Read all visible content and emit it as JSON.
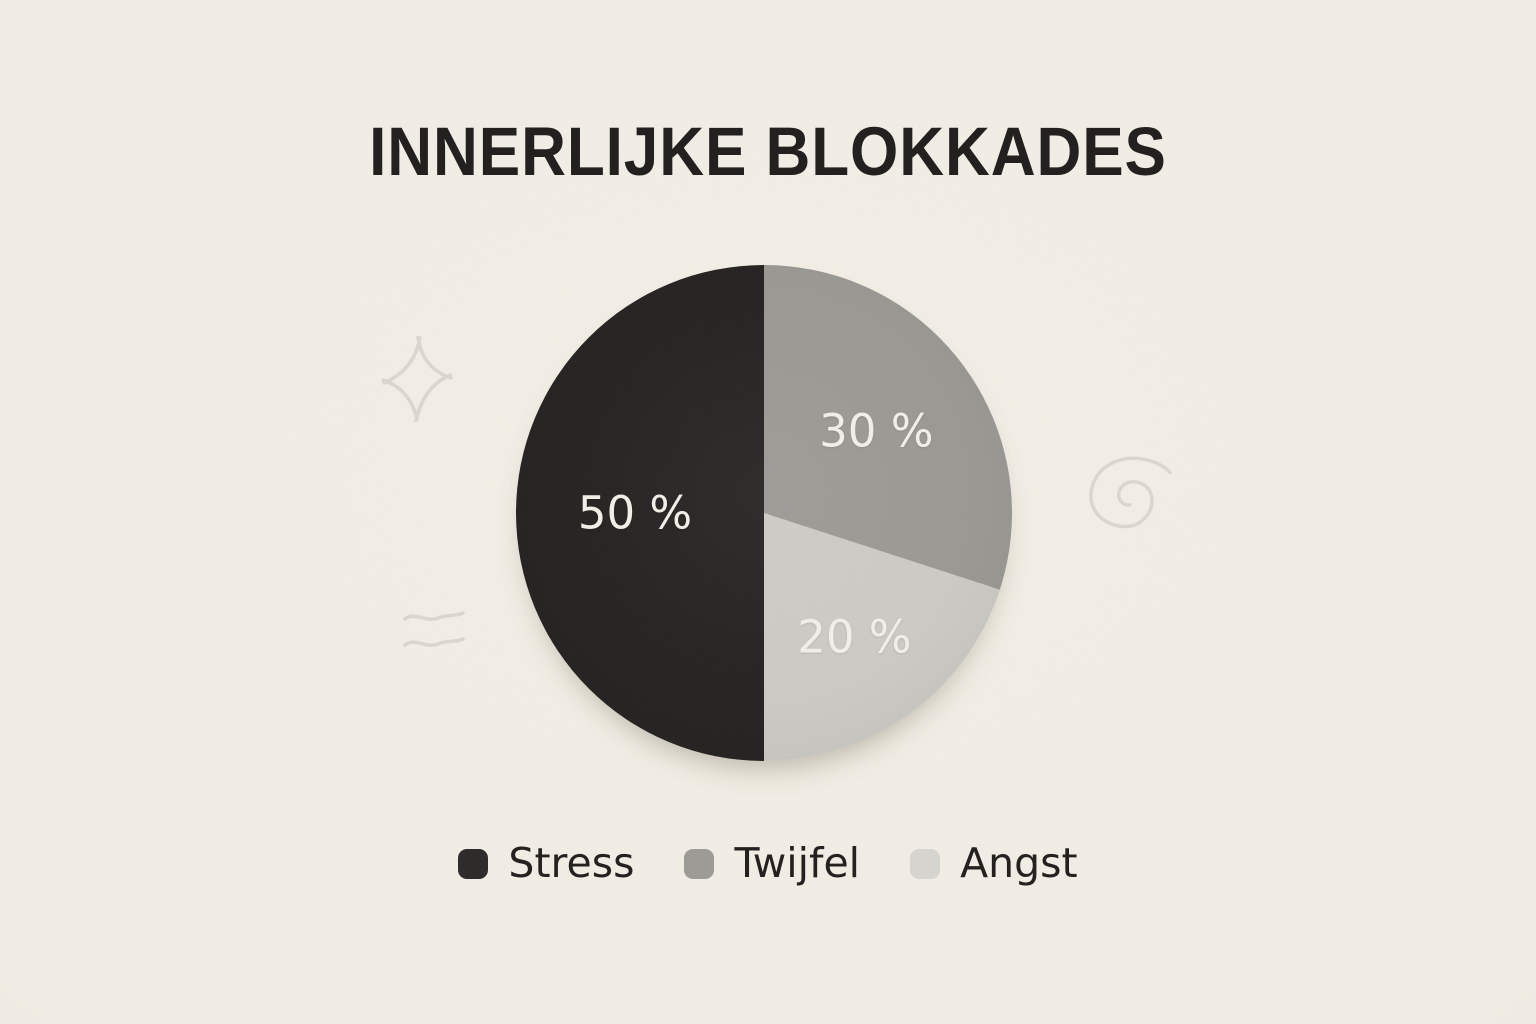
{
  "page": {
    "background_color": "#f1ede4"
  },
  "title": {
    "text": "INNERLIJKE BLOKKADES",
    "color": "#1f1c1b"
  },
  "chart_data": {
    "type": "pie",
    "title": "INNERLIJKE BLOKKADES",
    "start_angle_deg": 0,
    "direction": "clockwise",
    "slices": [
      {
        "label": "Twijfel",
        "value": 30,
        "display_label": "30 %",
        "color": "#9a9893"
      },
      {
        "label": "Angst",
        "value": 20,
        "display_label": "20 %",
        "color": "#cccac4"
      },
      {
        "label": "Stress",
        "value": 50,
        "display_label": "50 %",
        "color": "#242120"
      }
    ],
    "slice_label_color": "#f2efe8",
    "legend_position": "bottom"
  },
  "legend": {
    "items": [
      {
        "label": "Stress",
        "swatch_color": "#2b2827"
      },
      {
        "label": "Twijfel",
        "swatch_color": "#9c9a95"
      },
      {
        "label": "Angst",
        "swatch_color": "#d7d5cf"
      }
    ],
    "text_color": "#201d1c"
  },
  "decorations": {
    "sparkle": "sparkle-icon",
    "spiral": "spiral-icon",
    "waves": "waves-icon",
    "doodle_color": "#dbd7ce"
  }
}
